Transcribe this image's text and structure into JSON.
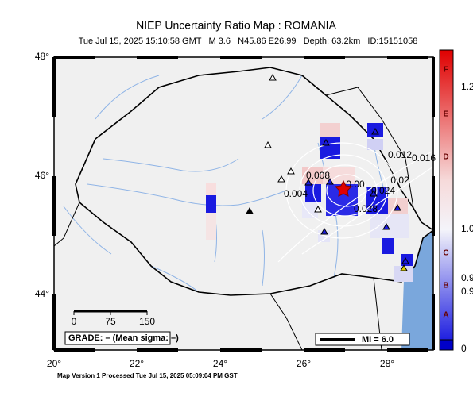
{
  "header": {
    "title": "NIEP Uncertainty Ratio Map : ROMANIA",
    "subtitle": "Tue Jul 15, 2025 15:10:58 GMT   M 3.6   N45.86 E26.99   Depth: 63.2km   ID:15151058"
  },
  "map": {
    "lat_labels": [
      "48°",
      "46°",
      "44°"
    ],
    "lon_labels": [
      "20°",
      "22°",
      "24°",
      "26°",
      "28°"
    ],
    "scale_labels": [
      "0",
      "75",
      "150"
    ],
    "grade": "GRADE: – (Mean sigma: –)",
    "mi_legend": "MI = 6.0",
    "contour_labels": [
      "0.004",
      "0.008",
      "0.012",
      "0.016",
      "0.02",
      "0.024",
      "0.028",
      "0.00"
    ]
  },
  "colorbar": {
    "grades": [
      "F",
      "E",
      "D",
      "C",
      "B",
      "A"
    ],
    "ticks": [
      "1.2",
      "1.0",
      "0.9",
      "0.9",
      "0"
    ]
  },
  "footer": "Map Version 1 Processed Tue Jul 15, 2025 05:09:04 PM GST"
}
